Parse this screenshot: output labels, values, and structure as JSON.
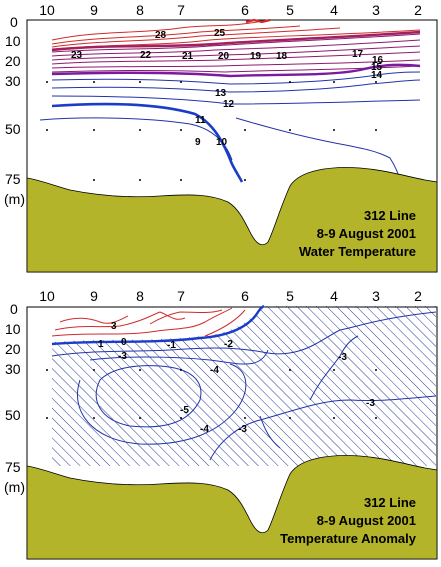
{
  "top_panel": {
    "stations": [
      "10",
      "9",
      "8",
      "7",
      "6",
      "5",
      "4",
      "3",
      "2"
    ],
    "depths": [
      "0",
      "10",
      "20",
      "30",
      "50",
      "75"
    ],
    "depth_unit": "(m)",
    "caption": [
      "312 Line",
      "8-9 August 2001",
      "Water Temperature"
    ],
    "contour_labels": [
      "28",
      "25",
      "23",
      "22",
      "21",
      "20",
      "19",
      "18",
      "17",
      "16",
      "15",
      "14",
      "13",
      "12",
      "11",
      "10",
      "9"
    ],
    "colors": {
      "warm": "#d22a2a",
      "mid": "#8e1a6e",
      "cool": "#2233aa",
      "bottom": "#b4b42a"
    }
  },
  "bottom_panel": {
    "stations": [
      "10",
      "9",
      "8",
      "7",
      "6",
      "5",
      "4",
      "3",
      "2"
    ],
    "depths": [
      "0",
      "10",
      "20",
      "30",
      "50",
      "75"
    ],
    "depth_unit": "(m)",
    "caption": [
      "312 Line",
      "8-9 August 2001",
      "Temperature Anomaly"
    ],
    "contour_labels": [
      "3",
      "1",
      "0",
      "-1",
      "-2",
      "-3",
      "-4",
      "-5",
      "-4",
      "-3",
      "-3",
      "-3"
    ],
    "colors": {
      "positive": "#d22a2a",
      "zero": "#1a3cc8",
      "negative": "#2233aa",
      "hatch": "#2a3a9a",
      "bottom": "#b4b42a"
    }
  }
}
